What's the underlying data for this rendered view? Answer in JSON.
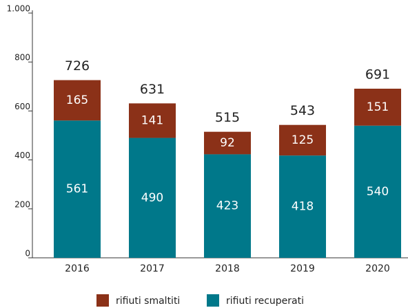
{
  "chart_data": {
    "type": "stacked-bar",
    "categories": [
      "2016",
      "2017",
      "2018",
      "2019",
      "2020"
    ],
    "series": [
      {
        "name": "rifiuti recuperati",
        "color": "#00788a",
        "values": [
          561,
          490,
          423,
          418,
          540
        ]
      },
      {
        "name": "rifiuti smaltiti",
        "color": "#8b3118",
        "values": [
          165,
          141,
          92,
          125,
          151
        ]
      }
    ],
    "totals": [
      726,
      631,
      515,
      543,
      691
    ],
    "ylim": [
      0,
      1000
    ],
    "yticks": [
      0,
      200,
      400,
      600,
      800,
      {
        "value": 1000,
        "label": "1.000"
      }
    ],
    "grid": false
  }
}
